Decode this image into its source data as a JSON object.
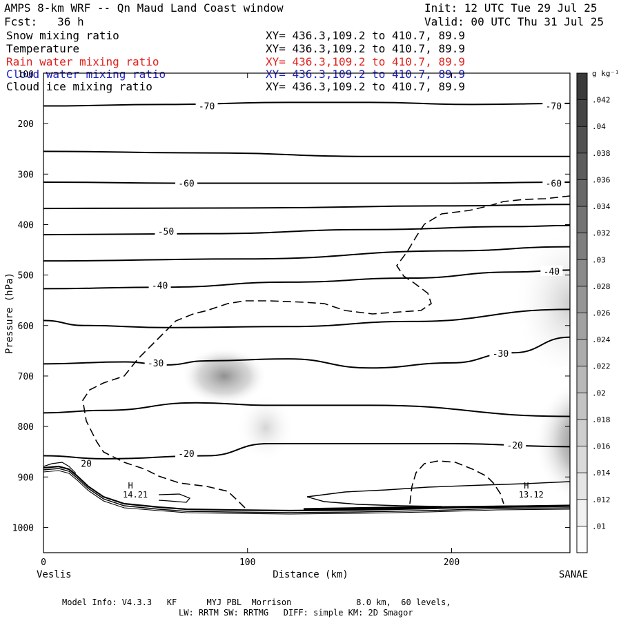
{
  "header": {
    "title": "AMPS 8-km WRF -- Qn Maud Land Coast window",
    "init": "Init: 12 UTC Tue 29 Jul 25",
    "fcst": "Fcst:   36 h",
    "valid": "Valid: 00 UTC Thu 31 Jul 25"
  },
  "fields": [
    {
      "name": "Snow mixing ratio",
      "xy": "XY= 436.3,109.2 to 410.7, 89.9",
      "color": "#000000"
    },
    {
      "name": "Temperature",
      "xy": "XY= 436.3,109.2 to 410.7, 89.9",
      "color": "#000000"
    },
    {
      "name": "Rain water mixing ratio",
      "xy": "XY= 436.3,109.2 to 410.7, 89.9",
      "color": "#e0201c"
    },
    {
      "name": "Cloud water mixing ratio",
      "xy": "XY= 436.3,109.2 to 410.7, 89.9",
      "color": "#2020c0"
    },
    {
      "name": "Cloud ice mixing ratio",
      "xy": "XY= 436.3,109.2 to 410.7, 89.9",
      "color": "#000000"
    }
  ],
  "colorbar": {
    "unit": "g kg⁻¹",
    "labels": [
      ".01",
      ".012",
      ".014",
      ".016",
      ".018",
      ".02",
      ".022",
      ".024",
      ".026",
      ".028",
      ".03",
      ".032",
      ".034",
      ".036",
      ".038",
      ".04",
      ".042"
    ]
  },
  "footer": {
    "line1": "Model Info: V4.3.3   KF      MYJ PBL  Morrison             8.0 km,  60 levels,",
    "line2": "LW: RRTM SW: RRTMG   DIFF: simple KM: 2D Smagor"
  },
  "chart_data": {
    "type": "cross-section",
    "xlabel": "Distance (km)",
    "ylabel": "Pressure (hPa)",
    "x_ticks": [
      0,
      100,
      200
    ],
    "y_ticks": [
      200,
      300,
      400,
      500,
      600,
      700,
      800,
      900,
      1000
    ],
    "y_top_label": "100",
    "xlim": [
      0,
      258
    ],
    "ylim": [
      1050,
      100
    ],
    "x_end_labels": {
      "left": "Veslis",
      "right": "SANAE"
    },
    "temperature_contours": [
      {
        "level": -70,
        "label": "-70",
        "x": [
          0,
          60,
          120,
          160,
          210,
          258
        ],
        "p": [
          165,
          162,
          158,
          158,
          162,
          160
        ],
        "label_at": [
          [
            80,
            165
          ],
          [
            250,
            165
          ]
        ]
      },
      {
        "level": null,
        "label": "",
        "x": [
          0,
          80,
          160,
          258
        ],
        "p": [
          255,
          258,
          265,
          265
        ],
        "label_at": []
      },
      {
        "level": -60,
        "label": "-60",
        "x": [
          0,
          70,
          140,
          200,
          258
        ],
        "p": [
          316,
          318,
          318,
          318,
          316
        ],
        "label_at": [
          [
            70,
            318
          ],
          [
            250,
            318
          ]
        ]
      },
      {
        "level": null,
        "label": "",
        "x": [
          0,
          100,
          200,
          258
        ],
        "p": [
          368,
          367,
          363,
          360
        ],
        "label_at": []
      },
      {
        "level": -50,
        "label": "-50",
        "x": [
          0,
          80,
          160,
          230,
          258
        ],
        "p": [
          420,
          418,
          410,
          404,
          402
        ],
        "label_at": [
          [
            60,
            413
          ]
        ]
      },
      {
        "level": null,
        "label": "",
        "x": [
          0,
          100,
          200,
          258
        ],
        "p": [
          472,
          468,
          452,
          444
        ],
        "label_at": []
      },
      {
        "level": -40,
        "label": "-40",
        "x": [
          0,
          60,
          120,
          180,
          230,
          258
        ],
        "p": [
          527,
          524,
          514,
          506,
          494,
          490
        ],
        "label_at": [
          [
            57,
            520
          ],
          [
            249,
            492
          ]
        ]
      },
      {
        "level": null,
        "label": "",
        "x": [
          0,
          20,
          60,
          120,
          180,
          258
        ],
        "p": [
          590,
          600,
          604,
          602,
          592,
          568
        ],
        "label_at": []
      },
      {
        "level": -30,
        "label": "-30",
        "x": [
          0,
          40,
          60,
          80,
          120,
          160,
          200,
          230,
          258
        ],
        "p": [
          676,
          672,
          678,
          670,
          666,
          684,
          674,
          654,
          623
        ],
        "label_at": [
          [
            55,
            674
          ],
          [
            224,
            655
          ]
        ]
      },
      {
        "level": null,
        "label": "",
        "x": [
          0,
          30,
          75,
          110,
          160,
          258
        ],
        "p": [
          773,
          768,
          753,
          758,
          758,
          780
        ],
        "label_at": []
      },
      {
        "level": -20,
        "label": "-20",
        "x": [
          0,
          30,
          80,
          110,
          200,
          258
        ],
        "p": [
          858,
          864,
          858,
          834,
          834,
          840
        ],
        "label_at": [
          [
            70,
            853
          ],
          [
            231,
            837
          ]
        ]
      }
    ],
    "extremes": [
      {
        "label": "H",
        "value": "14.21",
        "x": 45,
        "p": 945
      },
      {
        "label": "H",
        "value": "13.12",
        "x": 239,
        "p": 945
      }
    ],
    "low_label": {
      "label": "20",
      "x": 21,
      "p": 880
    }
  }
}
